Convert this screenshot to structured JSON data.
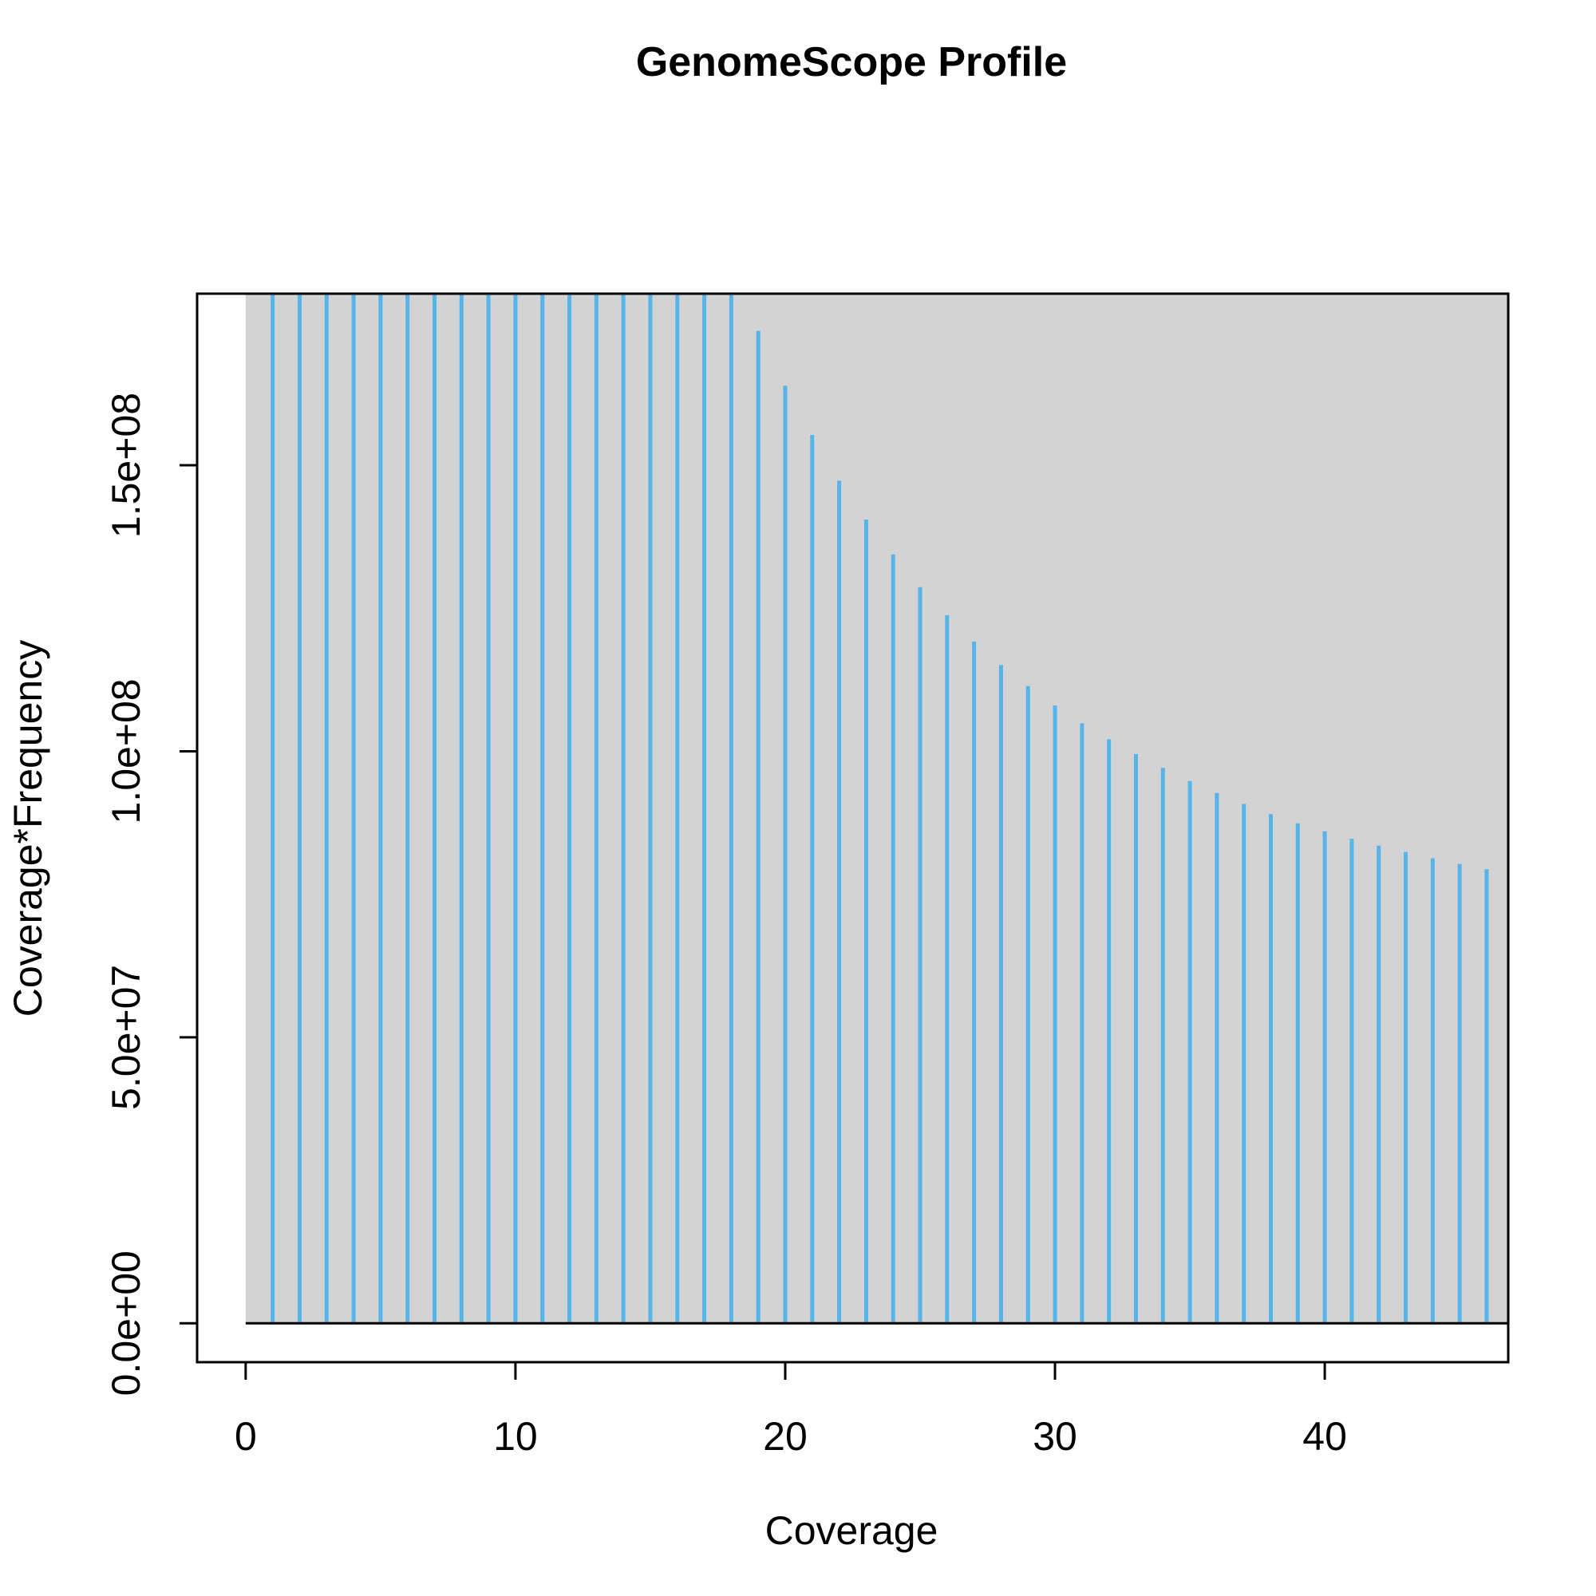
{
  "chart_data": {
    "type": "bar",
    "title": "GenomeScope Profile",
    "xlabel": "Coverage",
    "ylabel": "Coverage*Frequency",
    "xlim": [
      -1.8,
      46.8
    ],
    "ylim": [
      -6800000,
      180000000
    ],
    "x_ticks": [
      0,
      10,
      20,
      30,
      40
    ],
    "x_tick_labels": [
      "0",
      "10",
      "20",
      "30",
      "40"
    ],
    "y_ticks": [
      0,
      50000000,
      100000000,
      150000000
    ],
    "y_tick_labels": [
      "0.0e+00",
      "5.0e+07",
      "1.0e+08",
      "1.5e+08"
    ],
    "plot_region_fill": "#d3d3d3",
    "bar_color": "#56b4e9",
    "series": [
      {
        "x": [
          1,
          2,
          3,
          4,
          5,
          6,
          7,
          8,
          9,
          10,
          11,
          12,
          13,
          14,
          15,
          16,
          17,
          18,
          19,
          20,
          21,
          22,
          23,
          24,
          25,
          26,
          27,
          28,
          29,
          30,
          31,
          32,
          33,
          34,
          35,
          36,
          37,
          38,
          39,
          40,
          41,
          42,
          43,
          44,
          45,
          46
        ],
        "values": [
          180000000,
          180000000,
          180000000,
          180000000,
          180000000,
          180000000,
          180000000,
          180000000,
          180000000,
          180000000,
          180000000,
          180000000,
          180000000,
          180000000,
          180000000,
          180000000,
          180000000,
          180000000,
          173500000,
          163900000,
          155300000,
          147300000,
          140500000,
          134400000,
          128700000,
          123800000,
          119200000,
          115100000,
          111400000,
          108000000,
          104900000,
          102100000,
          99500000,
          97100000,
          94800000,
          92700000,
          90800000,
          89000000,
          87400000,
          86000000,
          84700000,
          83500000,
          82400000,
          81300000,
          80300000,
          79400000
        ]
      }
    ]
  }
}
